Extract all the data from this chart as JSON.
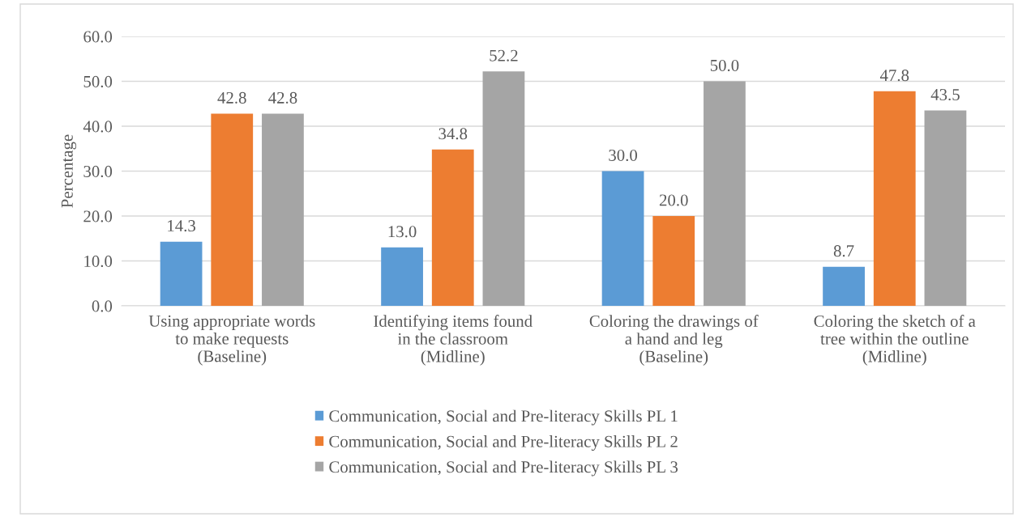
{
  "chart_data": {
    "type": "bar",
    "ylabel": "Percentage",
    "categories": [
      "Using appropriate words\nto make requests\n(Baseline)",
      "Identifying items found\nin the classroom\n(Midline)",
      "Coloring the drawings of\na hand and leg\n(Baseline)",
      "Coloring the sketch of a\ntree within the outline\n(Midline)"
    ],
    "series": [
      {
        "name": "Communication, Social and Pre-literacy Skills PL 1",
        "color": "#5b9bd5",
        "values": [
          14.3,
          13.0,
          30.0,
          8.7
        ],
        "value_labels": [
          "14.3",
          "13.0",
          "30.0",
          "8.7"
        ]
      },
      {
        "name": "Communication, Social and Pre-literacy Skills PL 2",
        "color": "#ed7d31",
        "values": [
          42.8,
          34.8,
          20.0,
          47.8
        ],
        "value_labels": [
          "42.8",
          "34.8",
          "20.0",
          "47.8"
        ]
      },
      {
        "name": "Communication, Social and Pre-literacy Skills PL 3",
        "color": "#a5a5a5",
        "values": [
          42.8,
          52.2,
          50.0,
          43.5
        ],
        "value_labels": [
          "42.8",
          "52.2",
          "50.0",
          "43.5"
        ]
      }
    ],
    "ylim": [
      0,
      60
    ],
    "yticks": [
      {
        "value": 0,
        "label": "0.0"
      },
      {
        "value": 10,
        "label": "10.0"
      },
      {
        "value": 20,
        "label": "20.0"
      },
      {
        "value": 30,
        "label": "30.0"
      },
      {
        "value": 40,
        "label": "40.0"
      },
      {
        "value": 50,
        "label": "50.0"
      },
      {
        "value": 60,
        "label": "60.0"
      }
    ],
    "grid": "y",
    "legend": "bottom"
  }
}
